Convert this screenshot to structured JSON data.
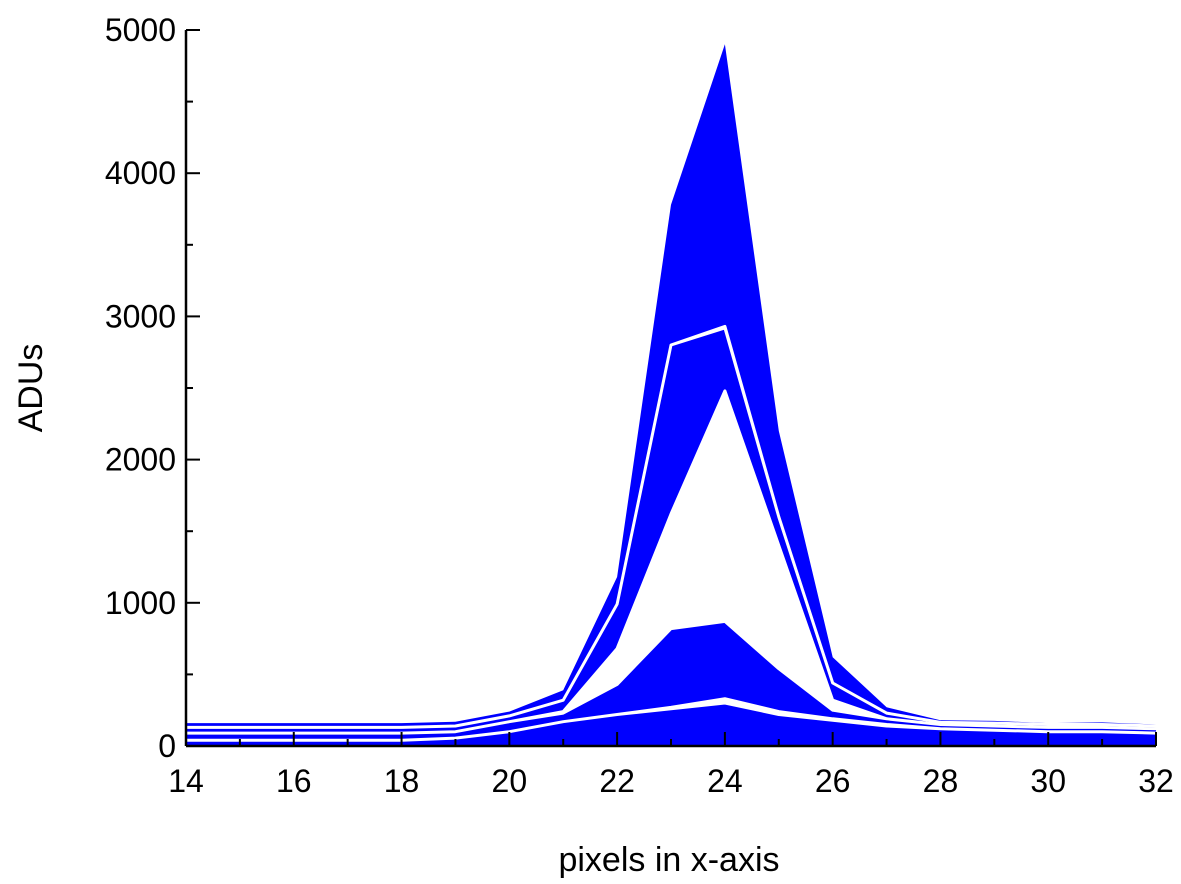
{
  "chart_data": {
    "type": "area",
    "title": "",
    "xlabel": "pixels in x-axis",
    "ylabel": "ADUs",
    "xlim": [
      14,
      32
    ],
    "ylim": [
      0,
      5000
    ],
    "xticks": [
      14,
      16,
      18,
      20,
      22,
      24,
      26,
      28,
      30,
      32
    ],
    "yticks": [
      0,
      1000,
      2000,
      3000,
      4000,
      5000
    ],
    "grid": false,
    "legend": "none",
    "color": "#0000ff",
    "x": [
      14,
      15,
      16,
      17,
      18,
      19,
      20,
      21,
      22,
      23,
      24,
      25,
      26,
      27,
      28,
      29,
      30,
      31,
      32
    ],
    "bands": [
      {
        "lower": [
          0,
          0,
          0,
          0,
          0,
          0,
          0,
          0,
          0,
          0,
          0,
          0,
          0,
          0,
          0,
          0,
          0,
          0,
          0
        ],
        "upper": [
          160,
          160,
          160,
          160,
          160,
          170,
          240,
          390,
          1180,
          3780,
          4900,
          2200,
          620,
          270,
          180,
          175,
          160,
          165,
          150
        ]
      },
      {
        "lower": [
          40,
          40,
          40,
          40,
          40,
          55,
          100,
          170,
          220,
          260,
          300,
          220,
          180,
          140,
          120,
          110,
          100,
          100,
          90
        ],
        "upper": [
          40,
          40,
          40,
          40,
          40,
          55,
          100,
          170,
          220,
          270,
          330,
          240,
          190,
          150,
          120,
          110,
          100,
          100,
          90
        ]
      },
      {
        "lower": [
          90,
          90,
          90,
          90,
          90,
          100,
          170,
          230,
          430,
          820,
          870,
          540,
          250,
          190,
          150,
          140,
          130,
          130,
          120
        ],
        "upper": [
          90,
          90,
          90,
          90,
          90,
          100,
          170,
          240,
          680,
          1620,
          2480,
          1400,
          320,
          190,
          150,
          140,
          130,
          130,
          120
        ]
      },
      {
        "lower": [
          130,
          130,
          130,
          130,
          130,
          140,
          210,
          320,
          990,
          2800,
          2920,
          1600,
          440,
          230,
          165,
          160,
          150,
          150,
          140
        ],
        "upper": [
          130,
          130,
          130,
          130,
          130,
          140,
          210,
          320,
          990,
          2800,
          2930,
          1600,
          440,
          230,
          165,
          160,
          150,
          150,
          140
        ]
      }
    ]
  }
}
